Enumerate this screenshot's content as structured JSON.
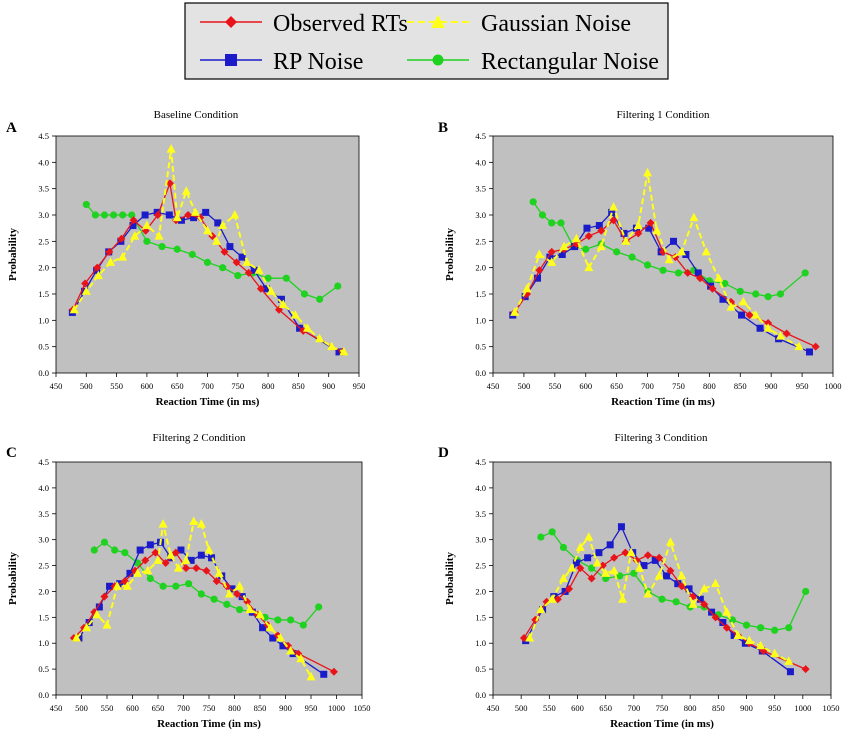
{
  "legend": {
    "entries": [
      {
        "label": "Observed RTs",
        "color": "#e8141a",
        "marker": "diamond",
        "dash": "solid"
      },
      {
        "label": "Gaussian Noise",
        "color": "#ffff1a",
        "marker": "triangle",
        "dash": "dashed"
      },
      {
        "label": "RP Noise",
        "color": "#1b1bc9",
        "marker": "square",
        "dash": "solid"
      },
      {
        "label": "Rectangular Noise",
        "color": "#1fd21f",
        "marker": "circle",
        "dash": "solid"
      }
    ]
  },
  "colors": {
    "plot_bg": "#c0c0c0",
    "axis": "#000000"
  },
  "chart_data": [
    {
      "panel": "A",
      "type": "line",
      "title": "Baseline Condition",
      "xlabel": "Reaction Time (in ms)",
      "ylabel": "Probability",
      "xlim": [
        450,
        950
      ],
      "ylim": [
        0,
        4.5
      ],
      "xticks": [
        450,
        500,
        550,
        600,
        650,
        700,
        750,
        800,
        850,
        900,
        950
      ],
      "yticks": [
        "0.0",
        "0.5",
        "1.0",
        "1.5",
        "2.0",
        "2.5",
        "3.0",
        "3.5",
        "4.0",
        "4.5"
      ],
      "grid": false,
      "series": [
        {
          "name": "Rectangular Noise",
          "x": [
            500,
            515,
            530,
            545,
            560,
            575,
            600,
            625,
            650,
            675,
            700,
            725,
            750,
            775,
            800,
            830,
            860,
            885,
            915
          ],
          "y": [
            3.2,
            3.0,
            3.0,
            3.0,
            3.0,
            3.0,
            2.5,
            2.4,
            2.35,
            2.25,
            2.1,
            2.0,
            1.85,
            1.9,
            1.8,
            1.8,
            1.5,
            1.4,
            1.65
          ]
        },
        {
          "name": "RP Noise",
          "x": [
            477,
            497,
            517,
            537,
            557,
            577,
            597,
            617,
            637,
            657,
            677,
            697,
            717,
            737,
            757,
            777,
            797,
            822,
            852,
            917
          ],
          "y": [
            1.15,
            1.55,
            1.95,
            2.3,
            2.5,
            2.8,
            3.0,
            3.05,
            3.0,
            2.9,
            2.95,
            3.05,
            2.85,
            2.4,
            2.2,
            1.95,
            1.6,
            1.4,
            0.85,
            0.4
          ]
        },
        {
          "name": "Observed RTs",
          "x": [
            478,
            498,
            518,
            538,
            558,
            578,
            598,
            618,
            638,
            648,
            668,
            688,
            708,
            728,
            748,
            768,
            788,
            818,
            858,
            923
          ],
          "y": [
            1.2,
            1.7,
            2.0,
            2.3,
            2.55,
            2.9,
            2.7,
            3.0,
            3.6,
            2.9,
            3.0,
            2.95,
            2.6,
            2.3,
            2.1,
            1.9,
            1.6,
            1.2,
            0.8,
            0.4
          ]
        },
        {
          "name": "Gaussian Noise",
          "x": [
            480,
            500,
            520,
            540,
            560,
            580,
            600,
            620,
            640,
            650,
            665,
            680,
            700,
            715,
            725,
            745,
            765,
            785,
            805,
            825,
            845,
            865,
            885,
            905,
            925
          ],
          "y": [
            1.2,
            1.55,
            1.85,
            2.1,
            2.2,
            2.6,
            2.8,
            2.6,
            4.25,
            2.95,
            3.45,
            3.05,
            2.7,
            2.5,
            2.8,
            3.0,
            2.1,
            1.95,
            1.55,
            1.3,
            1.1,
            0.85,
            0.65,
            0.5,
            0.4
          ]
        }
      ]
    },
    {
      "panel": "B",
      "type": "line",
      "title": "Filtering 1 Condition",
      "xlabel": "Reaction Time (in ms)",
      "ylabel": "Probability",
      "xlim": [
        450,
        1000
      ],
      "ylim": [
        0,
        4.5
      ],
      "xticks": [
        450,
        500,
        550,
        600,
        650,
        700,
        750,
        800,
        850,
        900,
        950,
        1000
      ],
      "yticks": [
        "0.0",
        "0.5",
        "1.0",
        "1.5",
        "2.0",
        "2.5",
        "3.0",
        "3.5",
        "4.0",
        "4.5"
      ],
      "grid": false,
      "series": [
        {
          "name": "Rectangular Noise",
          "x": [
            515,
            530,
            545,
            560,
            580,
            600,
            625,
            650,
            675,
            700,
            725,
            750,
            775,
            800,
            825,
            850,
            875,
            895,
            915,
            955
          ],
          "y": [
            3.25,
            3.0,
            2.85,
            2.85,
            2.4,
            2.35,
            2.45,
            2.3,
            2.2,
            2.05,
            1.95,
            1.9,
            1.95,
            1.75,
            1.7,
            1.55,
            1.5,
            1.45,
            1.5,
            1.9
          ]
        },
        {
          "name": "RP Noise",
          "x": [
            482,
            502,
            522,
            542,
            562,
            582,
            602,
            622,
            642,
            662,
            682,
            702,
            722,
            742,
            762,
            782,
            802,
            822,
            852,
            882,
            912,
            962
          ],
          "y": [
            1.1,
            1.45,
            1.8,
            2.2,
            2.25,
            2.4,
            2.75,
            2.8,
            3.05,
            2.65,
            2.75,
            2.75,
            2.3,
            2.5,
            2.25,
            1.9,
            1.65,
            1.4,
            1.1,
            0.85,
            0.65,
            0.4
          ]
        },
        {
          "name": "Observed RTs",
          "x": [
            485,
            505,
            525,
            545,
            565,
            585,
            605,
            625,
            645,
            665,
            685,
            705,
            725,
            745,
            765,
            785,
            805,
            835,
            865,
            895,
            925,
            972
          ],
          "y": [
            1.15,
            1.5,
            1.95,
            2.3,
            2.35,
            2.45,
            2.6,
            2.7,
            2.9,
            2.5,
            2.65,
            2.85,
            2.3,
            2.2,
            1.9,
            1.8,
            1.6,
            1.35,
            1.1,
            0.95,
            0.75,
            0.5
          ]
        },
        {
          "name": "Gaussian Noise",
          "x": [
            485,
            505,
            525,
            545,
            565,
            585,
            605,
            625,
            645,
            665,
            685,
            700,
            715,
            735,
            755,
            775,
            795,
            815,
            835,
            855,
            875,
            895,
            915,
            945
          ],
          "y": [
            1.15,
            1.6,
            2.25,
            2.1,
            2.4,
            2.55,
            2.0,
            2.4,
            3.15,
            2.5,
            2.8,
            3.8,
            2.7,
            2.15,
            2.3,
            2.95,
            2.3,
            1.8,
            1.25,
            1.35,
            1.1,
            0.85,
            0.7,
            0.5
          ]
        }
      ]
    },
    {
      "panel": "C",
      "type": "line",
      "title": "Filtering 2 Condition",
      "xlabel": "Reaction Time (in ms)",
      "ylabel": "Probability",
      "xlim": [
        450,
        1050
      ],
      "ylim": [
        0,
        4.5
      ],
      "xticks": [
        450,
        500,
        550,
        600,
        650,
        700,
        750,
        800,
        850,
        900,
        950,
        1000,
        1050
      ],
      "yticks": [
        "0.0",
        "0.5",
        "1.0",
        "1.5",
        "2.0",
        "2.5",
        "3.0",
        "3.5",
        "4.0",
        "4.5"
      ],
      "grid": false,
      "series": [
        {
          "name": "Rectangular Noise",
          "x": [
            525,
            545,
            565,
            585,
            610,
            635,
            660,
            685,
            710,
            735,
            760,
            785,
            810,
            835,
            860,
            885,
            910,
            935,
            965
          ],
          "y": [
            2.8,
            2.95,
            2.8,
            2.75,
            2.55,
            2.25,
            2.1,
            2.1,
            2.15,
            1.95,
            1.85,
            1.75,
            1.65,
            1.6,
            1.5,
            1.45,
            1.45,
            1.35,
            1.7
          ]
        },
        {
          "name": "RP Noise",
          "x": [
            495,
            515,
            535,
            555,
            575,
            595,
            615,
            635,
            655,
            675,
            695,
            715,
            735,
            755,
            775,
            795,
            815,
            835,
            855,
            875,
            895,
            915,
            975
          ],
          "y": [
            1.1,
            1.4,
            1.7,
            2.1,
            2.15,
            2.35,
            2.8,
            2.9,
            2.95,
            2.65,
            2.8,
            2.6,
            2.7,
            2.65,
            2.3,
            2.05,
            1.9,
            1.6,
            1.3,
            1.1,
            0.95,
            0.8,
            0.4
          ]
        },
        {
          "name": "Observed RTs",
          "x": [
            485,
            505,
            525,
            545,
            565,
            585,
            605,
            625,
            645,
            665,
            685,
            705,
            725,
            745,
            765,
            785,
            805,
            825,
            845,
            865,
            885,
            905,
            925,
            995
          ],
          "y": [
            1.1,
            1.3,
            1.6,
            1.9,
            2.1,
            2.2,
            2.4,
            2.6,
            2.75,
            2.55,
            2.75,
            2.45,
            2.45,
            2.4,
            2.2,
            2.1,
            1.95,
            1.8,
            1.55,
            1.35,
            1.15,
            0.95,
            0.8,
            0.45
          ]
        },
        {
          "name": "Gaussian Noise",
          "x": [
            490,
            510,
            530,
            550,
            570,
            590,
            610,
            630,
            650,
            660,
            675,
            690,
            705,
            720,
            735,
            750,
            770,
            790,
            810,
            830,
            850,
            870,
            890,
            910,
            930,
            950
          ],
          "y": [
            1.1,
            1.3,
            1.55,
            1.35,
            2.1,
            2.1,
            2.35,
            2.4,
            2.6,
            3.3,
            2.7,
            2.45,
            2.6,
            3.35,
            3.3,
            2.8,
            2.35,
            1.95,
            2.1,
            1.65,
            1.55,
            1.3,
            1.1,
            0.85,
            0.7,
            0.35
          ]
        }
      ]
    },
    {
      "panel": "D",
      "type": "line",
      "title": "Filtering 3 Condition",
      "xlabel": "Reaction Time (in ms)",
      "ylabel": "Probability",
      "xlim": [
        450,
        1050
      ],
      "ylim": [
        0,
        4.5
      ],
      "xticks": [
        450,
        500,
        550,
        600,
        650,
        700,
        750,
        800,
        850,
        900,
        950,
        1000,
        1050
      ],
      "yticks": [
        "0.0",
        "0.5",
        "1.0",
        "1.5",
        "2.0",
        "2.5",
        "3.0",
        "3.5",
        "4.0",
        "4.5"
      ],
      "grid": false,
      "series": [
        {
          "name": "Rectangular Noise",
          "x": [
            535,
            555,
            575,
            600,
            625,
            650,
            675,
            700,
            725,
            750,
            775,
            800,
            825,
            850,
            875,
            900,
            925,
            950,
            975,
            1005
          ],
          "y": [
            3.05,
            3.15,
            2.85,
            2.6,
            2.45,
            2.25,
            2.3,
            2.35,
            2.0,
            1.85,
            1.8,
            1.7,
            1.7,
            1.55,
            1.45,
            1.35,
            1.3,
            1.25,
            1.3,
            2.0
          ]
        },
        {
          "name": "RP Noise",
          "x": [
            508,
            538,
            558,
            578,
            598,
            618,
            638,
            658,
            678,
            698,
            718,
            738,
            758,
            778,
            798,
            818,
            838,
            858,
            878,
            898,
            928,
            978
          ],
          "y": [
            1.05,
            1.65,
            1.9,
            2.0,
            2.55,
            2.65,
            2.75,
            2.9,
            3.25,
            2.75,
            2.5,
            2.6,
            2.3,
            2.15,
            2.05,
            1.85,
            1.6,
            1.4,
            1.15,
            1.0,
            0.85,
            0.45
          ]
        },
        {
          "name": "Observed RTs",
          "x": [
            505,
            525,
            545,
            565,
            585,
            605,
            625,
            645,
            665,
            685,
            705,
            725,
            745,
            765,
            785,
            805,
            825,
            845,
            865,
            885,
            905,
            930,
            1005
          ],
          "y": [
            1.1,
            1.45,
            1.8,
            1.85,
            2.05,
            2.45,
            2.25,
            2.5,
            2.65,
            2.75,
            2.6,
            2.7,
            2.65,
            2.4,
            2.1,
            1.9,
            1.75,
            1.5,
            1.3,
            1.15,
            1.0,
            0.85,
            0.5
          ]
        },
        {
          "name": "Gaussian Noise",
          "x": [
            515,
            535,
            555,
            575,
            590,
            605,
            620,
            635,
            650,
            665,
            680,
            695,
            710,
            725,
            745,
            765,
            785,
            805,
            825,
            845,
            865,
            885,
            905,
            925,
            950,
            975
          ],
          "y": [
            1.1,
            1.65,
            1.85,
            2.25,
            2.45,
            2.85,
            3.05,
            2.55,
            2.35,
            2.4,
            1.85,
            2.75,
            2.45,
            1.95,
            2.3,
            2.95,
            2.3,
            1.75,
            2.05,
            2.15,
            1.6,
            1.15,
            1.05,
            0.95,
            0.8,
            0.65
          ]
        }
      ]
    }
  ]
}
